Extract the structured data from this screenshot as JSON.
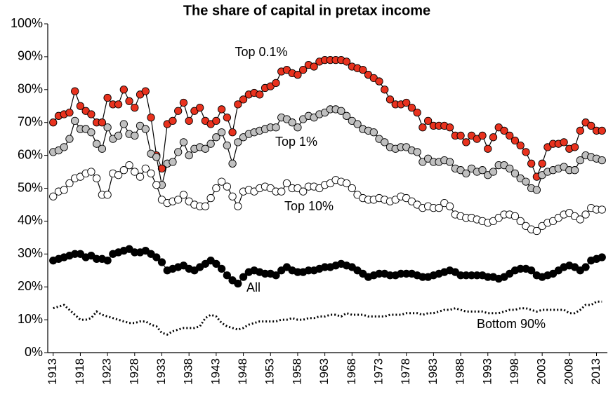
{
  "chart_data": {
    "type": "line",
    "title": "The share of capital in pretax income",
    "x": [
      1913,
      1914,
      1915,
      1916,
      1917,
      1918,
      1919,
      1920,
      1921,
      1922,
      1923,
      1924,
      1925,
      1926,
      1927,
      1928,
      1929,
      1930,
      1931,
      1932,
      1933,
      1934,
      1935,
      1936,
      1937,
      1938,
      1939,
      1940,
      1941,
      1942,
      1943,
      1944,
      1945,
      1946,
      1947,
      1948,
      1949,
      1950,
      1951,
      1952,
      1953,
      1954,
      1955,
      1956,
      1957,
      1958,
      1959,
      1960,
      1961,
      1962,
      1963,
      1964,
      1965,
      1966,
      1967,
      1968,
      1969,
      1970,
      1971,
      1972,
      1973,
      1974,
      1975,
      1976,
      1977,
      1978,
      1979,
      1980,
      1981,
      1982,
      1983,
      1984,
      1985,
      1986,
      1987,
      1988,
      1989,
      1990,
      1991,
      1992,
      1993,
      1994,
      1995,
      1996,
      1997,
      1998,
      1999,
      2000,
      2001,
      2002,
      2003,
      2004,
      2005,
      2006,
      2007,
      2008,
      2009,
      2010,
      2011,
      2012,
      2013,
      2014
    ],
    "xlim": [
      1912,
      2015
    ],
    "xticks": [
      1913,
      1918,
      1923,
      1928,
      1933,
      1938,
      1943,
      1948,
      1953,
      1958,
      1963,
      1968,
      1973,
      1978,
      1983,
      1988,
      1993,
      1998,
      2003,
      2008,
      2013
    ],
    "ylim": [
      0,
      100
    ],
    "yticks": [
      {
        "value": 0,
        "label": "0%"
      },
      {
        "value": 10,
        "label": "10%"
      },
      {
        "value": 20,
        "label": "20%"
      },
      {
        "value": 30,
        "label": "30%"
      },
      {
        "value": 40,
        "label": "40%"
      },
      {
        "value": 50,
        "label": "50%"
      },
      {
        "value": 60,
        "label": "60%"
      },
      {
        "value": 70,
        "label": "70%"
      },
      {
        "value": 80,
        "label": "80%"
      },
      {
        "value": 90,
        "label": "90%"
      },
      {
        "value": 100,
        "label": "100%"
      }
    ],
    "grid": false,
    "series": [
      {
        "name": "Top 0.1%",
        "color": "#e8321e",
        "line_style": "solid",
        "markers": true,
        "values": [
          70,
          72,
          72.5,
          73,
          79.5,
          75,
          73.5,
          72.5,
          70,
          70,
          77.5,
          75.5,
          75.5,
          80,
          76.5,
          74.5,
          78.5,
          79.5,
          71.5,
          60,
          56,
          69.5,
          70.5,
          73.5,
          76,
          70.5,
          73.5,
          74.5,
          70.5,
          69.5,
          70.5,
          74,
          71.5,
          67,
          75.5,
          77,
          78.5,
          79,
          78.5,
          80.5,
          81,
          82,
          85.5,
          86,
          85,
          84.5,
          86,
          87.5,
          87,
          88.5,
          89,
          89,
          89,
          89,
          88.5,
          87,
          86.5,
          86,
          84.5,
          83.5,
          82.5,
          80,
          77,
          75.5,
          75.5,
          76,
          74.5,
          73,
          68.5,
          70.5,
          69,
          69,
          69,
          68.5,
          66,
          66,
          64,
          66,
          65,
          66,
          62,
          65.5,
          68.5,
          67.5,
          66,
          64.5,
          63,
          61,
          57.5,
          53.5,
          57.5,
          62.5,
          63.5,
          63.5,
          64,
          62,
          62.5,
          67.5,
          70,
          69,
          67.5,
          67.5
        ]
      },
      {
        "name": "Top 1%",
        "color": "#c0c0c0",
        "line_style": "solid",
        "markers": true,
        "values": [
          61,
          61.5,
          62.5,
          65,
          70.5,
          68,
          68,
          67,
          63.5,
          62,
          68.5,
          65,
          66,
          69.5,
          66.5,
          66,
          69,
          68,
          60.5,
          59.5,
          51,
          57.5,
          58,
          61,
          64,
          60,
          62,
          62.5,
          62,
          63.5,
          65.5,
          67,
          63,
          57.5,
          64,
          65.5,
          66.5,
          67,
          67.5,
          68,
          68.5,
          68.5,
          71.5,
          71,
          70,
          68.5,
          71,
          72,
          71.5,
          72.5,
          73,
          74,
          74,
          73.5,
          72,
          70.5,
          69.5,
          68,
          67.5,
          67,
          65,
          64,
          62.5,
          62,
          62.5,
          62.5,
          61.5,
          61,
          58,
          59,
          58,
          58,
          58.5,
          58,
          56,
          55.5,
          54.5,
          56,
          55,
          55.5,
          54,
          55,
          57,
          57,
          56,
          54.5,
          53,
          52,
          50,
          49.5,
          54,
          55,
          55.5,
          56,
          56.5,
          55.5,
          55.5,
          58.5,
          60,
          59.5,
          59,
          58.5
        ]
      },
      {
        "name": "Top 10%",
        "color": "#ffffff",
        "line_style": "solid",
        "markers": true,
        "values": [
          47.5,
          49,
          49.5,
          51.5,
          53,
          53.5,
          54.5,
          55,
          53,
          48,
          48,
          54.5,
          54,
          55.5,
          57,
          55,
          53.5,
          56,
          54.5,
          51,
          46.5,
          45.5,
          46,
          46.5,
          48,
          46,
          45,
          44.5,
          44.5,
          47,
          50,
          52,
          50.5,
          47.5,
          44.5,
          49,
          49.5,
          49,
          50,
          50.5,
          50,
          49,
          49,
          51.5,
          50,
          50,
          49,
          50.5,
          50.5,
          50,
          51,
          51.5,
          52.5,
          52,
          51.5,
          50,
          48,
          47,
          46.5,
          46.5,
          47,
          46.5,
          46,
          46.5,
          47.5,
          47,
          46,
          45,
          44,
          44.5,
          44,
          44,
          45.5,
          44.5,
          42,
          41.5,
          41,
          41,
          40.5,
          40,
          39.5,
          40,
          41,
          42,
          42,
          41.5,
          40,
          38.5,
          37.5,
          37,
          38.5,
          39.5,
          40,
          41,
          42,
          42.5,
          41.5,
          40.5,
          42,
          44,
          43.5,
          43.5
        ]
      },
      {
        "name": "All",
        "color": "#000000",
        "line_style": "solid",
        "markers": true,
        "values": [
          28,
          28.5,
          29,
          29.5,
          30,
          30,
          29,
          29.5,
          28.5,
          28.5,
          28,
          30,
          30.5,
          31,
          31.5,
          30.5,
          30.5,
          31,
          30,
          29,
          27.5,
          25,
          25.5,
          26,
          26.5,
          25.5,
          25,
          26,
          27,
          28,
          27,
          25.5,
          23.5,
          22,
          21,
          23,
          24.5,
          25,
          24.5,
          24,
          24,
          23.5,
          25,
          26,
          25,
          24.5,
          24.5,
          25,
          25,
          25.5,
          26,
          26,
          26.5,
          27,
          26.5,
          26,
          25,
          24,
          23,
          23.5,
          24,
          24,
          23.5,
          23.5,
          24,
          24,
          24,
          23.5,
          23,
          23,
          23.5,
          24,
          24.5,
          25,
          24.5,
          23.5,
          23.5,
          23.5,
          23.5,
          23.5,
          23,
          23,
          22.5,
          23,
          24,
          25,
          25.5,
          25.5,
          25,
          23.5,
          23,
          23.5,
          24,
          25,
          26,
          26.5,
          26,
          25,
          26,
          28,
          28.5,
          29
        ]
      },
      {
        "name": "Bottom 90%",
        "color": "#000000",
        "line_style": "dotted",
        "markers": false,
        "values": [
          13.5,
          14,
          14.5,
          13,
          11.5,
          10,
          10,
          10.5,
          12.5,
          11.5,
          11,
          10.5,
          10,
          9.5,
          9,
          9,
          9.5,
          9.5,
          8.5,
          8,
          6,
          5.5,
          6.5,
          7,
          7.5,
          7.5,
          7.5,
          8,
          10.5,
          11.5,
          11,
          9,
          8,
          7.5,
          7,
          7.5,
          8.5,
          9,
          9.5,
          9.5,
          9.5,
          9.5,
          10,
          10,
          10.5,
          10,
          10,
          10.5,
          10.5,
          11,
          11,
          11.5,
          11.5,
          11,
          12,
          11.5,
          11.5,
          11.5,
          11,
          11,
          11,
          11,
          11.5,
          11.5,
          11.5,
          12,
          12,
          12,
          11.5,
          12,
          12,
          12.5,
          13,
          13,
          13.5,
          13,
          12.5,
          12.5,
          12.5,
          12.5,
          12,
          12,
          12,
          12.5,
          13,
          13,
          13.5,
          13.5,
          13,
          12.5,
          13,
          13,
          13,
          13,
          13,
          12,
          12,
          13,
          14.5,
          14.5,
          15.5,
          15.5
        ]
      }
    ]
  }
}
